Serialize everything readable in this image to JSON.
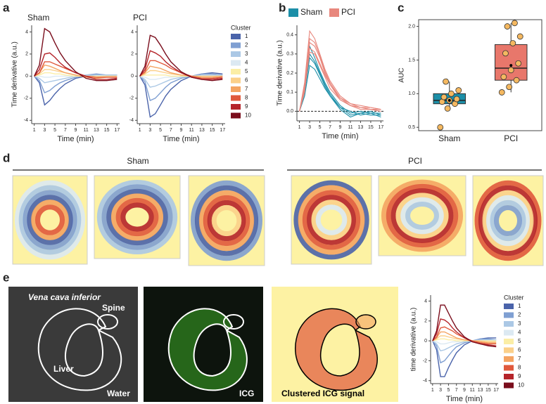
{
  "panels": {
    "a": "a",
    "b": "b",
    "c": "c",
    "d": "d",
    "e": "e"
  },
  "d": {
    "groups": [
      "Sham",
      "PCI"
    ]
  },
  "e": {
    "vena": "Vena cava inferior",
    "spine": "Spine",
    "liver": "Liver",
    "water": "Water",
    "icg": "ICG",
    "clustered": "Clustered ICG signal"
  },
  "chart_data": [
    {
      "type": "line",
      "title": "Sham",
      "x_label": "Time (min)",
      "y_label": "Time derivative (a.u.)",
      "x": [
        1,
        2,
        3,
        4,
        5,
        6,
        7,
        9,
        11,
        13,
        15,
        17
      ],
      "xlim": [
        0.5,
        17.5
      ],
      "xticks": [
        1,
        3,
        5,
        7,
        9,
        11,
        13,
        15,
        17
      ],
      "ylim": [
        -4.3,
        4.6
      ],
      "yticks": [
        -4,
        -2,
        0,
        2,
        4
      ],
      "series": [
        {
          "name": "1",
          "color": "#4a63aa",
          "values": [
            0,
            -0.6,
            -2.6,
            -2.2,
            -1.6,
            -1.1,
            -0.7,
            -0.2,
            0,
            0.1,
            0.1,
            0.1
          ]
        },
        {
          "name": "2",
          "color": "#7f9fd2",
          "values": [
            0,
            -0.4,
            -1.5,
            -1.3,
            -0.9,
            -0.6,
            -0.4,
            -0.1,
            0.1,
            0.2,
            0.1,
            0.1
          ]
        },
        {
          "name": "3",
          "color": "#abc8e5",
          "values": [
            0,
            -0.2,
            -0.6,
            -0.5,
            -0.4,
            -0.3,
            -0.2,
            0,
            0.1,
            0.1,
            0.1,
            0.1
          ]
        },
        {
          "name": "4",
          "color": "#dce9f2",
          "values": [
            0,
            0,
            -0.1,
            -0.1,
            0,
            0,
            0,
            0,
            0,
            0,
            0,
            0
          ]
        },
        {
          "name": "5",
          "color": "#fbeea6",
          "values": [
            0,
            0.1,
            0.3,
            0.3,
            0.2,
            0.2,
            0.1,
            0,
            0,
            0,
            0,
            0
          ]
        },
        {
          "name": "6",
          "color": "#fbd08a",
          "values": [
            0,
            0.2,
            0.6,
            0.6,
            0.5,
            0.4,
            0.3,
            0.1,
            0,
            -0.1,
            0,
            0
          ]
        },
        {
          "name": "7",
          "color": "#f4a462",
          "values": [
            0,
            0.3,
            1.0,
            0.9,
            0.7,
            0.5,
            0.3,
            0.1,
            -0.1,
            -0.2,
            -0.1,
            -0.1
          ]
        },
        {
          "name": "8",
          "color": "#e0593c",
          "values": [
            0,
            0.3,
            1.3,
            1.3,
            1.1,
            0.9,
            0.7,
            0.3,
            0,
            -0.1,
            -0.1,
            -0.1
          ]
        },
        {
          "name": "9",
          "color": "#b5242a",
          "values": [
            0,
            0.6,
            2.0,
            2.1,
            1.7,
            1.2,
            0.8,
            0.3,
            0,
            -0.3,
            -0.3,
            -0.2
          ]
        },
        {
          "name": "10",
          "color": "#7a0d1c",
          "values": [
            0,
            1.0,
            4.3,
            4.0,
            3.0,
            2.1,
            1.4,
            0.4,
            -0.2,
            -0.4,
            -0.4,
            -0.3
          ]
        }
      ]
    },
    {
      "type": "line",
      "title": "PCI",
      "x_label": "Time (min)",
      "legend_title": "Cluster",
      "legend": "right",
      "x": [
        1,
        2,
        3,
        4,
        5,
        6,
        7,
        9,
        11,
        13,
        15,
        17
      ],
      "xlim": [
        0.5,
        17.5
      ],
      "xticks": [
        1,
        3,
        5,
        7,
        9,
        11,
        13,
        15,
        17
      ],
      "ylim": [
        -4.3,
        4.6
      ],
      "yticks": [
        -4,
        -2,
        0,
        2,
        4
      ],
      "series": [
        {
          "name": "1",
          "color": "#4a63aa",
          "values": [
            0,
            -0.8,
            -3.7,
            -3.4,
            -2.6,
            -1.8,
            -1.2,
            -0.4,
            0,
            0.2,
            0.3,
            0.2
          ]
        },
        {
          "name": "2",
          "color": "#7f9fd2",
          "values": [
            0,
            -0.5,
            -2.2,
            -2.0,
            -1.5,
            -1.0,
            -0.6,
            -0.2,
            0,
            0.2,
            0.2,
            0.1
          ]
        },
        {
          "name": "3",
          "color": "#abc8e5",
          "values": [
            0,
            -0.3,
            -1.0,
            -0.9,
            -0.7,
            -0.5,
            -0.3,
            -0.1,
            0,
            0.1,
            0.1,
            0.1
          ]
        },
        {
          "name": "4",
          "color": "#dce9f2",
          "values": [
            0,
            -0.1,
            -0.3,
            -0.3,
            -0.2,
            -0.1,
            -0.1,
            0,
            0,
            0,
            0,
            0
          ]
        },
        {
          "name": "5",
          "color": "#fbeea6",
          "values": [
            0,
            0.1,
            0.1,
            0.1,
            0.1,
            0.1,
            0,
            0,
            0,
            0,
            0,
            0
          ]
        },
        {
          "name": "6",
          "color": "#fbd08a",
          "values": [
            0,
            0.2,
            0.5,
            0.5,
            0.4,
            0.3,
            0.2,
            0.1,
            0,
            0,
            0,
            0
          ]
        },
        {
          "name": "7",
          "color": "#f4a462",
          "values": [
            0,
            0.3,
            0.9,
            0.8,
            0.7,
            0.5,
            0.3,
            0.1,
            0,
            -0.1,
            -0.1,
            0
          ]
        },
        {
          "name": "8",
          "color": "#e0593c",
          "values": [
            0,
            0.4,
            1.4,
            1.4,
            1.2,
            1.0,
            0.7,
            0.3,
            0,
            -0.2,
            -0.2,
            -0.1
          ]
        },
        {
          "name": "9",
          "color": "#b5242a",
          "values": [
            0,
            0.6,
            2.3,
            2.1,
            1.8,
            1.3,
            0.9,
            0.3,
            -0.1,
            -0.3,
            -0.3,
            -0.2
          ]
        },
        {
          "name": "10",
          "color": "#7a0d1c",
          "values": [
            0,
            0.9,
            3.7,
            3.5,
            2.8,
            2.0,
            1.3,
            0.4,
            -0.1,
            -0.3,
            -0.4,
            -0.3
          ]
        }
      ]
    },
    {
      "type": "group-line",
      "x_label": "Time (min)",
      "y_label": "Time derivative (a.u.)",
      "legend": "top",
      "zero_line": true,
      "x": [
        1,
        2,
        3,
        4,
        5,
        6,
        7,
        9,
        11,
        13,
        15,
        17
      ],
      "xlim": [
        0.5,
        17.5
      ],
      "xticks": [
        1,
        3,
        5,
        7,
        9,
        11,
        13,
        15,
        17
      ],
      "ylim": [
        -0.05,
        0.45
      ],
      "yticks": [
        {
          "value": 0,
          "label": "0.0"
        },
        0.1,
        0.2,
        0.3,
        0.4
      ],
      "series": [
        {
          "name": "Sham",
          "color": "#1c8fa8",
          "lines": [
            [
              0,
              0.1,
              0.3,
              0.26,
              0.2,
              0.14,
              0.09,
              0.02,
              -0.02,
              -0.01,
              0,
              -0.02
            ],
            [
              0,
              0.12,
              0.34,
              0.28,
              0.21,
              0.15,
              0.1,
              0.03,
              -0.01,
              0,
              -0.01,
              -0.01
            ],
            [
              0,
              0.08,
              0.24,
              0.22,
              0.17,
              0.12,
              0.08,
              0.02,
              0,
              -0.02,
              -0.01,
              -0.03
            ],
            [
              0,
              0.1,
              0.28,
              0.25,
              0.19,
              0.13,
              0.08,
              0.01,
              -0.03,
              -0.01,
              -0.02,
              -0.02
            ]
          ]
        },
        {
          "name": "PCI",
          "color": "#e8877d",
          "lines": [
            [
              0,
              0.15,
              0.42,
              0.38,
              0.3,
              0.22,
              0.16,
              0.08,
              0.04,
              0.02,
              0.02,
              0.01
            ],
            [
              0,
              0.12,
              0.38,
              0.36,
              0.29,
              0.21,
              0.15,
              0.07,
              0.03,
              0.02,
              0.01,
              0.01
            ],
            [
              0,
              0.1,
              0.33,
              0.31,
              0.25,
              0.19,
              0.14,
              0.07,
              0.04,
              0.03,
              0.02,
              0.01
            ],
            [
              0,
              0.13,
              0.36,
              0.34,
              0.28,
              0.2,
              0.14,
              0.06,
              0.03,
              0.02,
              0.01,
              0
            ],
            [
              0,
              0.11,
              0.31,
              0.3,
              0.24,
              0.18,
              0.12,
              0.06,
              0.03,
              0.01,
              0.01,
              0.01
            ]
          ]
        }
      ]
    },
    {
      "type": "box",
      "y_label": "AUC",
      "categories": [
        "Sham",
        "PCI"
      ],
      "ylim": [
        0.45,
        2.1
      ],
      "yticks": [
        0.5,
        {
          "value": 1,
          "label": "1.0"
        },
        1.5,
        {
          "value": 2,
          "label": "2.0"
        }
      ],
      "point_color": "#f4b860",
      "boxes": [
        {
          "color": "#1c8fa8",
          "whislo": 0.78,
          "q1": 0.85,
          "median": 0.9,
          "q3": 1.0,
          "whishi": 1.18,
          "mean": 0.9
        },
        {
          "color": "#e8776b",
          "whislo": 1.02,
          "q1": 1.2,
          "median": 1.38,
          "q3": 1.73,
          "whishi": 2.05,
          "mean": 1.42
        }
      ],
      "points": [
        [
          0.5,
          0.78,
          0.85,
          0.88,
          0.9,
          0.92,
          0.95,
          1.0,
          1.05,
          1.18
        ],
        [
          1.02,
          1.1,
          1.2,
          1.25,
          1.35,
          1.45,
          1.6,
          1.75,
          1.85,
          2.0,
          2.05
        ]
      ]
    },
    {
      "type": "line",
      "x_label": "Time (min)",
      "y_label": "time derivative (a.u.)",
      "legend_title": "Cluster",
      "legend": "right",
      "x": [
        1,
        2,
        3,
        4,
        5,
        6,
        7,
        9,
        11,
        13,
        15,
        17
      ],
      "xlim": [
        0.5,
        17.5
      ],
      "xticks": [
        1,
        3,
        5,
        7,
        9,
        11,
        13,
        15,
        17
      ],
      "ylim": [
        -4.3,
        4.6
      ],
      "yticks": [
        -4,
        -2,
        0,
        2,
        4
      ],
      "series": [
        {
          "name": "1",
          "color": "#4a63aa",
          "values": [
            0,
            -0.9,
            -3.6,
            -3.6,
            -2.7,
            -1.9,
            -1.2,
            -0.4,
            0,
            0.2,
            0.3,
            0.3
          ]
        },
        {
          "name": "2",
          "color": "#7f9fd2",
          "values": [
            0,
            -0.5,
            -2.2,
            -2.0,
            -1.5,
            -1.0,
            -0.6,
            -0.2,
            0,
            0.2,
            0.2,
            0.1
          ]
        },
        {
          "name": "3",
          "color": "#abc8e5",
          "values": [
            0,
            -0.3,
            -1.0,
            -0.9,
            -0.7,
            -0.5,
            -0.3,
            -0.1,
            0,
            0.1,
            0.1,
            0.1
          ]
        },
        {
          "name": "4",
          "color": "#dce9f2",
          "values": [
            0,
            -0.1,
            -0.3,
            -0.3,
            -0.2,
            -0.1,
            -0.1,
            0,
            0,
            0,
            0,
            0
          ]
        },
        {
          "name": "5",
          "color": "#fbeea6",
          "values": [
            0,
            0.1,
            0.2,
            0.2,
            0.1,
            0.1,
            0,
            0,
            0,
            0,
            0,
            0
          ]
        },
        {
          "name": "6",
          "color": "#fbd08a",
          "values": [
            0,
            0.2,
            0.5,
            0.5,
            0.4,
            0.3,
            0.2,
            0.1,
            0,
            0,
            -0.1,
            -0.1
          ]
        },
        {
          "name": "7",
          "color": "#f4a462",
          "values": [
            0,
            0.3,
            0.9,
            0.9,
            0.7,
            0.5,
            0.3,
            0.1,
            0,
            -0.1,
            -0.2,
            -0.2
          ]
        },
        {
          "name": "8",
          "color": "#e0593c",
          "values": [
            0,
            0.4,
            1.3,
            1.4,
            1.2,
            1.0,
            0.7,
            0.3,
            0,
            -0.2,
            -0.3,
            -0.3
          ]
        },
        {
          "name": "9",
          "color": "#b5242a",
          "values": [
            0,
            0.7,
            2.2,
            2.1,
            1.8,
            1.3,
            0.9,
            0.3,
            -0.1,
            -0.3,
            -0.4,
            -0.5
          ]
        },
        {
          "name": "10",
          "color": "#7a0d1c",
          "values": [
            0,
            1.0,
            3.6,
            3.6,
            2.8,
            2.0,
            1.3,
            0.4,
            -0.1,
            -0.3,
            -0.5,
            -0.6
          ]
        }
      ]
    }
  ]
}
